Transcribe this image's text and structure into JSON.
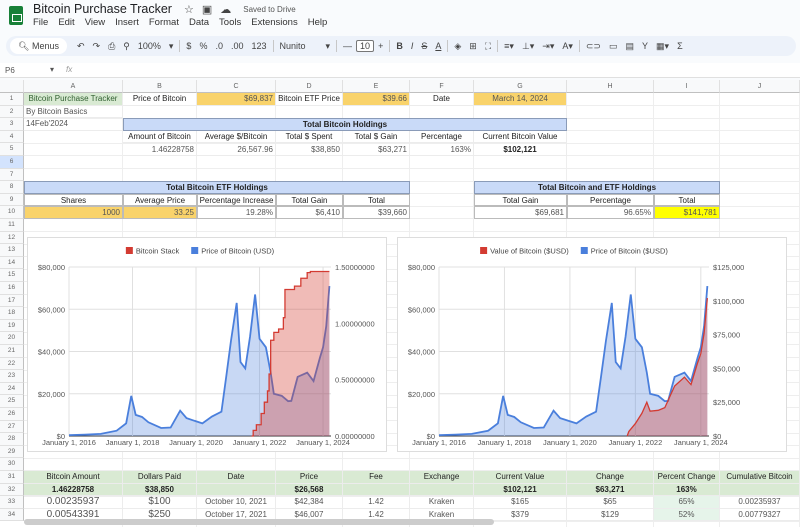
{
  "app": {
    "title": "Bitcoin Purchase Tracker",
    "saved": "Saved to Drive",
    "menu": [
      "File",
      "Edit",
      "View",
      "Insert",
      "Format",
      "Data",
      "Tools",
      "Extensions",
      "Help"
    ]
  },
  "toolbar": {
    "search": "Menus",
    "zoom": "100%",
    "currency": "$",
    "percent": "%",
    "dec_dec": ".0",
    "inc_dec": ".00",
    "format123": "123",
    "font": "Nunito",
    "font_size": "10"
  },
  "formula_bar": {
    "cell_ref": "P6",
    "fx": "fx",
    "value": ""
  },
  "columns": [
    "A",
    "B",
    "C",
    "D",
    "E",
    "F",
    "G",
    "H",
    "I",
    "J"
  ],
  "rows": [
    "1",
    "2",
    "3",
    "4",
    "5",
    "6",
    "7",
    "8",
    "9",
    "10",
    "11",
    "12",
    "13",
    "14",
    "15",
    "16",
    "17",
    "18",
    "19",
    "20",
    "21",
    "22",
    "23",
    "24",
    "25",
    "26",
    "27",
    "28",
    "29",
    "30",
    "31",
    "32",
    "33",
    "34"
  ],
  "cells": {
    "A1": "Bitcoin Purchase Tracker",
    "B1": "Price of Bitcoin",
    "C1": "$69,837",
    "D1": "Bitcoin ETF Price",
    "E1": "$39.66",
    "F1": "Date",
    "G1": "March 14, 2024",
    "A2": "By Bitcoin Basics",
    "A3": "14Feb'2024",
    "B3": "Total Bitcoin Holdings",
    "B4": "Amount of Bitcoin",
    "C4": "Average $/Bitcoin",
    "D4": "Total $ Spent",
    "E4": "Total $ Gain",
    "F4": "Percentage",
    "G4": "Current Bitcoin Value",
    "B5": "1.46228758",
    "C5": "26,567.96",
    "D5": "$38,850",
    "E5": "$63,271",
    "F5": "163%",
    "G5": "$102,121",
    "A8": "Total Bitcoin ETF Holdings",
    "G8": "Total Bitcoin and ETF Holdings",
    "A9": "Shares",
    "B9": "Average Price",
    "C9": "Percentage Increase",
    "D9": "Total Gain",
    "E9": "Total",
    "G9": "Total Gain",
    "H9": "Percentage",
    "I9": "Total",
    "A10": "1000",
    "B10": "33.25",
    "C10": "19.28%",
    "D10": "$6,410",
    "E10": "$39,660",
    "G10": "$69,681",
    "H10": "96.65%",
    "I10": "$141,781",
    "A31": "Bitcoin Amount",
    "B31": "Dollars Paid",
    "C31": "Date",
    "D31": "Price",
    "E31": "Fee",
    "F31": "Exchange",
    "G31": "Current Value",
    "H31": "Change",
    "I31": "Percent Change",
    "J31": "Cumulative Bitcoin",
    "A32": "1.46228758",
    "B32": "$38,850",
    "C32": "",
    "D32": "$26,568",
    "E32": "",
    "F32": "",
    "G32": "$102,121",
    "H32": "$63,271",
    "I32": "163%",
    "J32": "",
    "A33": "0.00235937",
    "B33": "$100",
    "C33": "October 10, 2021",
    "D33": "$42,384",
    "E33": "1.42",
    "F33": "Kraken",
    "G33": "$165",
    "H33": "$65",
    "I33": "65%",
    "J33": "0.00235937",
    "A34": "0.00543391",
    "B34": "$250",
    "C34": "October 17, 2021",
    "D34": "$46,007",
    "E34": "1.42",
    "F34": "Kraken",
    "G34": "$379",
    "H34": "$129",
    "I34": "52%",
    "J34": "0.00779327"
  },
  "colors": {
    "price": "#4a7fdc",
    "stack": "#d33b32",
    "header_blue": "#c9daf8",
    "input_yellow": "#f9d36b",
    "highlight": "#ffff00",
    "green": "#d9ead3"
  },
  "chart_data": [
    {
      "type": "area",
      "title": "",
      "legend": [
        "Bitcoin Stack",
        "Price of Bitcoin (USD)"
      ],
      "legend_position": "top",
      "x_ticks": [
        "January 1, 2016",
        "January 1, 2018",
        "January 1, 2020",
        "January 1, 2022",
        "January 1, 2024"
      ],
      "y_left_ticks": [
        "$0",
        "$20,000",
        "$40,000",
        "$60,000",
        "$80,000"
      ],
      "y_left_range": [
        0,
        80000
      ],
      "y_right_ticks": [
        "0.00000000",
        "0.50000000",
        "1.00000000",
        "1.50000000"
      ],
      "y_right_range": [
        0,
        1.5
      ],
      "x_range": [
        2016,
        2024.25
      ],
      "series": [
        {
          "name": "Price of Bitcoin (USD)",
          "axis": "left",
          "x": [
            2016,
            2016.5,
            2017,
            2017.5,
            2017.8,
            2017.96,
            2018.1,
            2018.3,
            2018.5,
            2018.9,
            2019.2,
            2019.5,
            2019.7,
            2019.95,
            2020.2,
            2020.5,
            2020.8,
            2020.95,
            2021.1,
            2021.28,
            2021.4,
            2021.55,
            2021.7,
            2021.86,
            2022,
            2022.2,
            2022.35,
            2022.45,
            2022.7,
            2022.9,
            2023,
            2023.2,
            2023.5,
            2023.7,
            2023.9,
            2024,
            2024.1,
            2024.2
          ],
          "y": [
            430,
            650,
            1000,
            2500,
            6000,
            19000,
            10000,
            9000,
            6500,
            3800,
            4000,
            12000,
            8500,
            7200,
            6000,
            9200,
            11500,
            28000,
            45000,
            63000,
            35000,
            32000,
            47000,
            67000,
            46000,
            42000,
            30000,
            20000,
            19000,
            16500,
            16600,
            28000,
            30000,
            26000,
            37000,
            42000,
            52000,
            71000
          ]
        },
        {
          "name": "Bitcoin Stack",
          "axis": "right",
          "x": [
            2021.75,
            2021.8,
            2021.9,
            2022.05,
            2022.15,
            2022.25,
            2022.3,
            2022.35,
            2022.45,
            2022.6,
            2022.75,
            2022.8,
            2023.1,
            2023.3,
            2023.5,
            2023.6,
            2024.2
          ],
          "y": [
            0,
            0.05,
            0.1,
            0.2,
            0.3,
            0.4,
            0.55,
            0.85,
            0.92,
            0.95,
            1.05,
            1.3,
            1.33,
            1.4,
            1.45,
            1.46,
            1.46
          ]
        }
      ]
    },
    {
      "type": "area",
      "title": "",
      "legend": [
        "Value of Bitcoin ($USD)",
        "Price of Bitcoin ($USD)"
      ],
      "legend_position": "top",
      "x_ticks": [
        "January 1, 2016",
        "January 1, 2018",
        "January 1, 2020",
        "January 1, 2022",
        "January 1, 2024"
      ],
      "y_left_ticks": [
        "$0",
        "$20,000",
        "$40,000",
        "$60,000",
        "$80,000"
      ],
      "y_left_range": [
        0,
        80000
      ],
      "y_right_ticks": [
        "$0",
        "$25,000",
        "$50,000",
        "$75,000",
        "$100,000",
        "$125,000"
      ],
      "y_right_range": [
        0,
        125000
      ],
      "x_range": [
        2016,
        2024.25
      ],
      "series": [
        {
          "name": "Price of Bitcoin ($USD)",
          "axis": "left",
          "x": [
            2016,
            2016.5,
            2017,
            2017.5,
            2017.8,
            2017.96,
            2018.1,
            2018.3,
            2018.5,
            2018.9,
            2019.2,
            2019.5,
            2019.7,
            2019.95,
            2020.2,
            2020.5,
            2020.8,
            2020.95,
            2021.1,
            2021.28,
            2021.4,
            2021.55,
            2021.7,
            2021.86,
            2022,
            2022.2,
            2022.35,
            2022.45,
            2022.7,
            2022.9,
            2023,
            2023.2,
            2023.5,
            2023.7,
            2023.9,
            2024,
            2024.1,
            2024.2
          ],
          "y": [
            430,
            650,
            1000,
            2500,
            6000,
            19000,
            10000,
            9000,
            6500,
            3800,
            4000,
            12000,
            8500,
            7200,
            6000,
            9200,
            11500,
            28000,
            45000,
            63000,
            35000,
            32000,
            47000,
            67000,
            46000,
            42000,
            30000,
            20000,
            19000,
            16500,
            16600,
            28000,
            30000,
            26000,
            37000,
            42000,
            52000,
            71000
          ]
        },
        {
          "name": "Value of Bitcoin ($USD)",
          "axis": "right",
          "x": [
            2021.75,
            2021.8,
            2022,
            2022.2,
            2022.35,
            2022.45,
            2022.7,
            2022.9,
            2023.2,
            2023.5,
            2023.7,
            2023.9,
            2024,
            2024.1,
            2024.2
          ],
          "y": [
            0,
            3350,
            9200,
            16800,
            25000,
            18400,
            19000,
            21000,
            37000,
            43500,
            38000,
            54000,
            61000,
            76000,
            102000
          ]
        }
      ]
    }
  ]
}
